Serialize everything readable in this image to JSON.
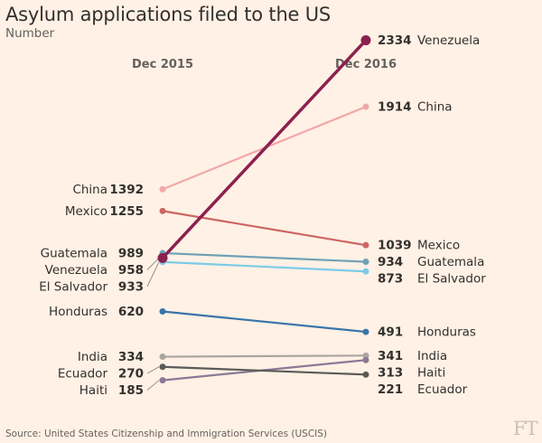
{
  "header": {
    "title": "Asylum applications filed to the US",
    "subtitle": "Number"
  },
  "footer": {
    "source": "Source: United States Citizenship and Immigration Services (USCIS)",
    "logo": "FT"
  },
  "chart_data": {
    "type": "line",
    "chart_kind": "slope",
    "x": [
      "Dec 2015",
      "Dec 2016"
    ],
    "ylim": [
      0,
      2400
    ],
    "grid": false,
    "legend": "none",
    "series": [
      {
        "name": "Venezuela",
        "values": [
          958,
          2334
        ],
        "color": "#8c2050",
        "highlight": true
      },
      {
        "name": "China",
        "values": [
          1392,
          1914
        ],
        "color": "#f2a8a8"
      },
      {
        "name": "Mexico",
        "values": [
          1255,
          1039
        ],
        "color": "#cc6663"
      },
      {
        "name": "Guatemala",
        "values": [
          989,
          934
        ],
        "color": "#6fa1b5"
      },
      {
        "name": "El Salvador",
        "values": [
          933,
          873
        ],
        "color": "#7bcbe8"
      },
      {
        "name": "Honduras",
        "values": [
          620,
          491
        ],
        "color": "#3a74a8"
      },
      {
        "name": "India",
        "values": [
          334,
          341
        ],
        "color": "#aaa59e"
      },
      {
        "name": "Haiti",
        "values": [
          185,
          313
        ],
        "color": "#8c7896"
      },
      {
        "name": "Ecuador",
        "values": [
          270,
          221
        ],
        "color": "#5a5a58"
      }
    ]
  }
}
